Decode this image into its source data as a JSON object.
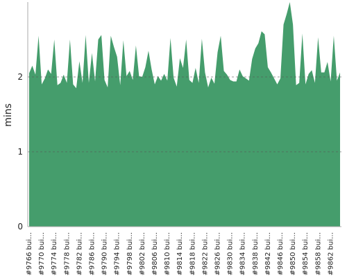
{
  "chart_data": {
    "type": "area",
    "y_label": "mins",
    "color": "#459d6c",
    "ylim": [
      0,
      3
    ],
    "yticks": [
      0,
      1,
      2
    ],
    "grid": true,
    "categories": [
      "#9766 bui…",
      null,
      null,
      null,
      "#9770 bui…",
      null,
      null,
      null,
      "#9774 bui…",
      null,
      null,
      null,
      "#9778 bui…",
      null,
      null,
      null,
      "#9782 bui…",
      null,
      null,
      null,
      "#9786 bui…",
      null,
      null,
      null,
      "#9790 bui…",
      null,
      null,
      null,
      "#9794 bui…",
      null,
      null,
      null,
      "#9798 bui…",
      null,
      null,
      null,
      "#9802 bui…",
      null,
      null,
      null,
      "#9806 bui…",
      null,
      null,
      null,
      "#9810 bui…",
      null,
      null,
      null,
      "#9814 bui…",
      null,
      null,
      null,
      "#9818 bui…",
      null,
      null,
      null,
      "#9822 bui…",
      null,
      null,
      null,
      "#9826 bui…",
      null,
      null,
      null,
      "#9830 bui…",
      null,
      null,
      null,
      "#9834 bui…",
      null,
      null,
      null,
      "#9838 bui…",
      null,
      null,
      null,
      "#9842 bui…",
      null,
      null,
      null,
      "#9846 bui…",
      null,
      null,
      null,
      "#9850 bui…",
      null,
      null,
      null,
      "#9854 bui…",
      null,
      null,
      null,
      "#9858 bui…",
      null,
      null,
      null,
      "#9862 bui…",
      null,
      null,
      null
    ],
    "values": [
      2.05,
      2.15,
      2.03,
      2.55,
      1.9,
      1.98,
      2.1,
      2.04,
      2.5,
      1.89,
      1.92,
      2.03,
      1.92,
      2.5,
      1.9,
      1.85,
      2.21,
      1.92,
      2.56,
      1.92,
      2.32,
      1.94,
      2.5,
      2.56,
      1.96,
      1.86,
      2.55,
      2.4,
      2.27,
      1.89,
      2.49,
      2.01,
      2.08,
      1.96,
      2.42,
      2.01,
      2.0,
      2.13,
      2.35,
      2.1,
      1.9,
      2.01,
      1.95,
      2.04,
      1.95,
      2.52,
      1.99,
      1.87,
      2.25,
      2.12,
      2.5,
      1.96,
      1.92,
      2.12,
      1.92,
      2.51,
      2.06,
      1.86,
      1.99,
      1.91,
      2.33,
      2.55,
      2.08,
      2.03,
      1.96,
      1.94,
      1.94,
      2.1,
      2.01,
      1.98,
      1.95,
      2.24,
      2.38,
      2.45,
      2.61,
      2.57,
      2.13,
      2.06,
      1.98,
      1.9,
      1.98,
      2.7,
      2.84,
      3.0,
      2.7,
      1.89,
      1.92,
      2.58,
      1.9,
      2.04,
      2.09,
      1.92,
      2.53,
      2.06,
      2.06,
      2.2,
      1.94,
      2.55,
      1.95,
      2.06
    ]
  }
}
